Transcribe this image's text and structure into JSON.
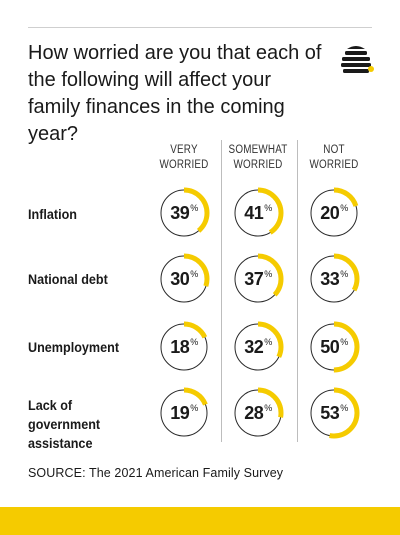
{
  "title": "How worried are you that each of the following will affect your family finances in the coming year?",
  "source": "SOURCE: The 2021 American Family Survey",
  "colors": {
    "accent": "#f5cb00",
    "ring_track": "#2a2a2a",
    "divider": "#bdbdbd",
    "band": "#f5cb00"
  },
  "logo_icon": "beehive-icon",
  "columns": [
    {
      "line1": "VERY",
      "line2": "WORRIED"
    },
    {
      "line1": "SOMEWHAT",
      "line2": "WORRIED"
    },
    {
      "line1": "NOT",
      "line2": "WORRIED"
    }
  ],
  "rows": [
    {
      "label_lines": [
        "Inflation"
      ]
    },
    {
      "label_lines": [
        "National debt"
      ]
    },
    {
      "label_lines": [
        "Unemployment"
      ]
    },
    {
      "label_lines": [
        "Lack of government",
        "assistance"
      ]
    }
  ],
  "pct_symbol": "%",
  "chart_data": {
    "type": "table",
    "categories": [
      "Inflation",
      "National debt",
      "Unemployment",
      "Lack of government assistance"
    ],
    "series": [
      {
        "name": "VERY WORRIED",
        "values": [
          39,
          30,
          18,
          19
        ]
      },
      {
        "name": "SOMEWHAT WORRIED",
        "values": [
          41,
          37,
          32,
          28
        ]
      },
      {
        "name": "NOT WORRIED",
        "values": [
          20,
          33,
          50,
          53
        ]
      }
    ],
    "unit": "%"
  }
}
